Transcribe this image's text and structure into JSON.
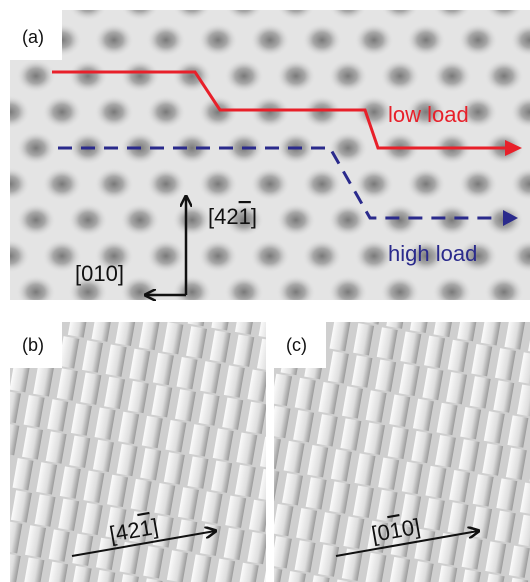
{
  "panels": [
    {
      "label": "(a)",
      "annotations": {
        "low_load": "low load",
        "high_load": "high load",
        "direction_up": {
          "before": "[42",
          "overlined": "1",
          "after": "]"
        },
        "direction_left": "[010]"
      }
    },
    {
      "label": "(b)",
      "direction": {
        "before": "[42",
        "overlined": "1",
        "after": "]"
      }
    },
    {
      "label": "(c)",
      "direction": {
        "before": "[0",
        "overlined": "1",
        "after": "0]"
      }
    }
  ]
}
